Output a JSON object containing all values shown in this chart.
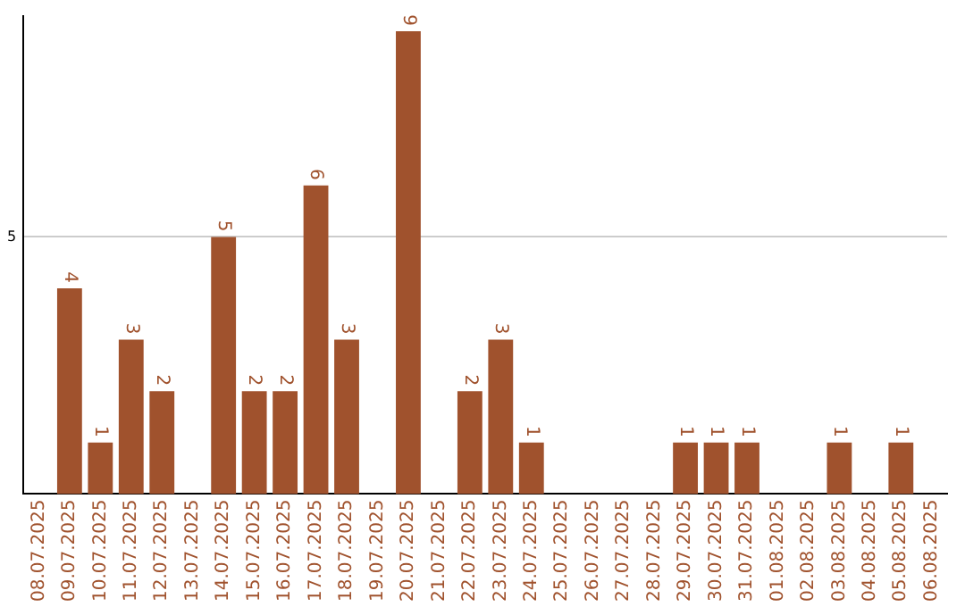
{
  "chart_data": {
    "type": "bar",
    "categories": [
      "08.07.2025",
      "09.07.2025",
      "10.07.2025",
      "11.07.2025",
      "12.07.2025",
      "13.07.2025",
      "14.07.2025",
      "15.07.2025",
      "16.07.2025",
      "17.07.2025",
      "18.07.2025",
      "19.07.2025",
      "20.07.2025",
      "21.07.2025",
      "22.07.2025",
      "23.07.2025",
      "24.07.2025",
      "25.07.2025",
      "26.07.2025",
      "27.07.2025",
      "28.07.2025",
      "29.07.2025",
      "30.07.2025",
      "31.07.2025",
      "01.08.2025",
      "02.08.2025",
      "03.08.2025",
      "04.08.2025",
      "05.08.2025",
      "06.08.2025"
    ],
    "values": [
      0,
      4,
      1,
      3,
      2,
      0,
      5,
      2,
      2,
      6,
      3,
      0,
      9,
      0,
      2,
      3,
      1,
      0,
      0,
      0,
      0,
      1,
      1,
      1,
      0,
      0,
      1,
      0,
      1,
      0
    ],
    "value_labels": [
      null,
      "4",
      "1",
      "3",
      "2",
      null,
      "5",
      "2",
      "2",
      "6",
      "3",
      null,
      "9",
      null,
      "2",
      "3",
      "1",
      null,
      null,
      null,
      null,
      "1",
      "1",
      "1",
      null,
      null,
      "1",
      null,
      "1",
      null
    ],
    "color": "#a0522d",
    "ylim": [
      0,
      9.3
    ],
    "yticks": [
      5
    ],
    "grid": "y",
    "legend": false
  }
}
